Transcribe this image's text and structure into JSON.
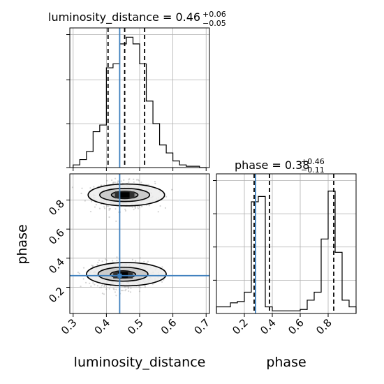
{
  "chart_data": {
    "type": "corner",
    "parameters": [
      "luminosity_distance",
      "phase"
    ],
    "truths": {
      "luminosity_distance": 0.44,
      "phase": 0.28
    },
    "panels": [
      {
        "id": "hist-luminosity_distance",
        "type": "histogram",
        "title": {
          "prefix": "luminosity_distance = ",
          "value": "0.46",
          "plus": "+0.06",
          "minus": "−0.05"
        },
        "xlim": [
          0.29,
          0.71
        ],
        "ylim": [
          0,
          1.0
        ],
        "bin_edges": [
          0.3,
          0.31,
          0.32,
          0.33,
          0.34,
          0.35,
          0.36,
          0.37,
          0.38,
          0.39,
          0.4,
          0.41,
          0.42,
          0.43,
          0.44,
          0.45,
          0.46,
          0.47,
          0.48,
          0.49,
          0.5,
          0.51,
          0.52,
          0.53,
          0.54,
          0.55,
          0.56,
          0.57,
          0.58,
          0.59,
          0.6,
          0.61,
          0.62,
          0.63,
          0.64,
          0.65,
          0.66,
          0.67,
          0.68,
          0.69,
          0.7
        ],
        "counts": [
          0.02,
          0.02,
          0.06,
          0.06,
          0.12,
          0.12,
          0.27,
          0.27,
          0.32,
          0.32,
          0.75,
          0.75,
          0.78,
          0.78,
          0.93,
          0.93,
          0.98,
          0.98,
          0.93,
          0.93,
          0.78,
          0.78,
          0.5,
          0.5,
          0.33,
          0.33,
          0.17,
          0.17,
          0.11,
          0.11,
          0.05,
          0.05,
          0.02,
          0.02,
          0.01,
          0.01,
          0.01,
          0.01,
          0.0,
          0.0
        ],
        "quantiles": [
          0.405,
          0.455,
          0.515
        ],
        "xticks": [
          0.3,
          0.4,
          0.5,
          0.6,
          0.7
        ],
        "yticks": [
          0.0,
          0.33,
          0.66,
          1.0
        ],
        "grid": true
      },
      {
        "id": "hist-phase",
        "type": "histogram",
        "title": {
          "prefix": "phase = ",
          "value": "0.38",
          "plus": "+0.46",
          "minus": "−0.11"
        },
        "xlim": [
          0.0,
          1.0
        ],
        "ylim": [
          0,
          1.0
        ],
        "bin_edges": [
          0.0,
          0.05,
          0.1,
          0.15,
          0.2,
          0.25,
          0.3,
          0.35,
          0.4,
          0.45,
          0.5,
          0.55,
          0.6,
          0.65,
          0.7,
          0.75,
          0.8,
          0.85,
          0.9,
          0.95,
          1.0
        ],
        "counts": [
          0.05,
          0.05,
          0.08,
          0.09,
          0.16,
          0.84,
          0.88,
          0.05,
          0.02,
          0.02,
          0.02,
          0.02,
          0.03,
          0.1,
          0.16,
          0.56,
          0.92,
          0.46,
          0.1,
          0.05
        ],
        "quantiles": [
          0.27,
          0.38,
          0.84
        ],
        "xticks": [
          0.2,
          0.4,
          0.6,
          0.8
        ],
        "yticks": [
          0.25,
          0.5,
          0.75,
          1.0
        ],
        "grid": true
      },
      {
        "id": "scatter-luminosity_distance-phase",
        "type": "2d-density",
        "xlim": [
          0.29,
          0.71
        ],
        "ylim": [
          0.02,
          0.98
        ],
        "xticks": [
          0.3,
          0.4,
          0.5,
          0.6,
          0.7
        ],
        "yticks": [
          0.2,
          0.4,
          0.6,
          0.8
        ],
        "modes": [
          {
            "cx": 0.455,
            "cy": 0.835,
            "sx": 0.045,
            "sy": 0.045,
            "n": 620
          },
          {
            "cx": 0.45,
            "cy": 0.285,
            "sx": 0.045,
            "sy": 0.045,
            "n": 660
          }
        ],
        "contours": [
          {
            "level": "outer",
            "mode": 0,
            "cx": 0.46,
            "cy": 0.835,
            "rx": 0.115,
            "ry": 0.075
          },
          {
            "level": "middle",
            "mode": 0,
            "cx": 0.455,
            "cy": 0.835,
            "rx": 0.075,
            "ry": 0.045
          },
          {
            "level": "inner",
            "mode": 0,
            "cx": 0.455,
            "cy": 0.835,
            "rx": 0.04,
            "ry": 0.025
          },
          {
            "level": "outer",
            "mode": 1,
            "cx": 0.46,
            "cy": 0.29,
            "rx": 0.12,
            "ry": 0.08
          },
          {
            "level": "middle",
            "mode": 1,
            "cx": 0.45,
            "cy": 0.29,
            "rx": 0.075,
            "ry": 0.048
          },
          {
            "level": "inner",
            "mode": 1,
            "cx": 0.45,
            "cy": 0.288,
            "rx": 0.038,
            "ry": 0.025
          }
        ],
        "grid": true
      }
    ],
    "xlabels": [
      "luminosity_distance",
      "phase"
    ],
    "ylabels": [
      "phase"
    ],
    "tick_labels": {
      "x_luminosity_distance": [
        "0.3",
        "0.4",
        "0.5",
        "0.6",
        "0.7"
      ],
      "x_phase": [
        "0.2",
        "0.4",
        "0.6",
        "0.8"
      ],
      "y_phase": [
        "0.2",
        "0.4",
        "0.6",
        "0.8"
      ]
    }
  },
  "colors": {
    "hist": "#000000",
    "truth": "#3d7fbd",
    "grid": "#b0b0b0",
    "scatter": "#888888",
    "contour_fill": [
      "#ececec",
      "#c5c5c5",
      "#8d8d8d",
      "#303030"
    ]
  }
}
